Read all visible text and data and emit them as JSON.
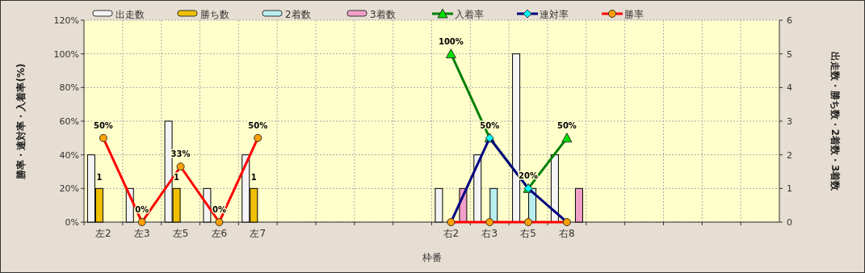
{
  "chart_data": {
    "type": "bar",
    "xlabel": "枠番",
    "ylabel": "勝率・連対率・入着率(%)",
    "y2label": "出走数・勝ち数・2着数・3着数",
    "categories": [
      "左2",
      "左3",
      "左5",
      "左6",
      "左7",
      null,
      null,
      null,
      null,
      "右2",
      "右3",
      "右5",
      "右8",
      null,
      null,
      null,
      null,
      null
    ],
    "ylim": [
      0,
      120
    ],
    "yticks": [
      {
        "value": 0,
        "label": "0%"
      },
      {
        "value": 20,
        "label": "20%"
      },
      {
        "value": 40,
        "label": "40%"
      },
      {
        "value": 60,
        "label": "60%"
      },
      {
        "value": 80,
        "label": "80%"
      },
      {
        "value": 100,
        "label": "100%"
      },
      {
        "value": 120,
        "label": "120%"
      }
    ],
    "y2lim": [
      0,
      6
    ],
    "y2ticks": [
      0,
      1,
      2,
      3,
      4,
      5,
      6
    ],
    "grid": true,
    "legend": "top",
    "series": [
      {
        "name": "出走数",
        "axis": "y2",
        "color": "#f4f4f4",
        "values": [
          2,
          1,
          3,
          1,
          2,
          null,
          null,
          null,
          null,
          1,
          2,
          5,
          2,
          null,
          null,
          null,
          null,
          null
        ]
      },
      {
        "name": "勝ち数",
        "axis": "y2",
        "color": "#f0c000",
        "values": [
          1,
          0,
          1,
          0,
          1,
          null,
          null,
          null,
          null,
          0,
          0,
          0,
          0,
          null,
          null,
          null,
          null,
          null
        ],
        "value_labels": [
          "1",
          null,
          "1",
          null,
          "1",
          null,
          null,
          null,
          null,
          null,
          null,
          null,
          null,
          null,
          null,
          null,
          null,
          null
        ]
      },
      {
        "name": "2着数",
        "axis": "y2",
        "color": "#b8eef0",
        "values": [
          0,
          0,
          0,
          0,
          0,
          null,
          null,
          null,
          null,
          0,
          1,
          1,
          0,
          null,
          null,
          null,
          null,
          null
        ]
      },
      {
        "name": "3着数",
        "axis": "y2",
        "color": "#f0a0c8",
        "values": [
          0,
          0,
          0,
          0,
          0,
          null,
          null,
          null,
          null,
          1,
          0,
          0,
          1,
          null,
          null,
          null,
          null,
          null
        ]
      },
      {
        "name": "入着率",
        "type": "line",
        "color": "#008000",
        "marker": "triangle",
        "values": [
          null,
          null,
          null,
          null,
          null,
          null,
          null,
          null,
          null,
          100,
          50,
          20,
          50,
          null,
          null,
          null,
          null,
          null
        ],
        "value_labels": [
          null,
          null,
          null,
          null,
          null,
          null,
          null,
          null,
          null,
          "100%",
          null,
          null,
          "50%",
          null,
          null,
          null,
          null,
          null
        ]
      },
      {
        "name": "連対率",
        "type": "line",
        "color": "#000080",
        "marker": "diamond",
        "values": [
          null,
          null,
          null,
          null,
          null,
          null,
          null,
          null,
          null,
          0,
          50,
          20,
          0,
          null,
          null,
          null,
          null,
          null
        ],
        "value_labels": [
          null,
          null,
          null,
          null,
          null,
          null,
          null,
          null,
          null,
          null,
          "50%",
          "20%",
          null,
          null,
          null,
          null,
          null,
          null
        ]
      },
      {
        "name": "勝率",
        "type": "line",
        "color": "#ff0000",
        "marker": "circle",
        "values": [
          50,
          0,
          33,
          0,
          50,
          null,
          null,
          null,
          null,
          0,
          0,
          0,
          0,
          null,
          null,
          null,
          null,
          null
        ],
        "value_labels": [
          "50%",
          "0%",
          "33%",
          "0%",
          "50%",
          null,
          null,
          null,
          null,
          null,
          null,
          null,
          null,
          null,
          null,
          null,
          null,
          null
        ]
      }
    ]
  }
}
